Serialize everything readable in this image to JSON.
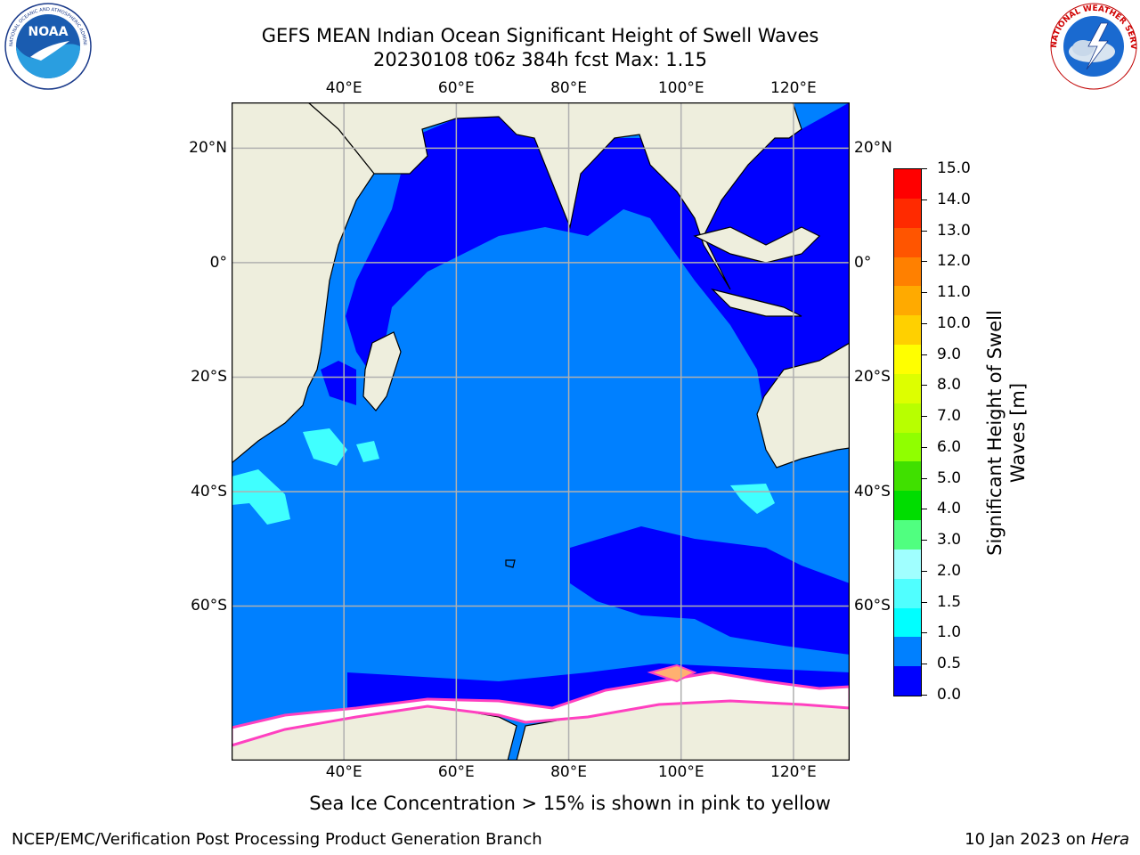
{
  "title": {
    "line1": "GEFS MEAN Indian Ocean Significant Height of Swell Waves",
    "line2": "20230108 t06z 384h fcst   Max: 1.15"
  },
  "logos": {
    "noaa_text": "NOAA",
    "noaa_ring_text": "NATIONAL OCEANIC AND ATMOSPHERIC ADMINISTRATION · U.S. DEPARTMENT OF COMMERCE",
    "nws_ring_text": "NATIONAL WEATHER SERVICE"
  },
  "map": {
    "lon_ticks": [
      "40°E",
      "60°E",
      "80°E",
      "100°E",
      "120°E"
    ],
    "lat_ticks": [
      "20°N",
      "0°",
      "20°S",
      "40°S",
      "60°S"
    ],
    "lon_values": [
      40,
      60,
      80,
      100,
      120
    ],
    "lat_values": [
      20,
      0,
      -20,
      -40,
      -60
    ],
    "lon_range": [
      20,
      130
    ],
    "lat_range": [
      28,
      -87
    ],
    "colors": {
      "land": "#eeeedd",
      "ocean_low": "#0000ff",
      "ocean_mid": "#0080ff",
      "ocean_cyan": "#40ffff",
      "sea_ice": "#ffffff",
      "ice_edge": "#ff40c0",
      "grid": "#b0b0b0"
    }
  },
  "colorbar": {
    "ticks": [
      "15.0",
      "14.0",
      "13.0",
      "12.0",
      "11.0",
      "10.0",
      "9.0",
      "8.0",
      "7.0",
      "6.0",
      "5.0",
      "4.0",
      "3.0",
      "2.0",
      "1.5",
      "1.0",
      "0.5",
      "0.0"
    ],
    "bin_colors": [
      "#ff0000",
      "#ff2a00",
      "#ff5500",
      "#ff8000",
      "#ffaa00",
      "#ffd000",
      "#ffff00",
      "#ddff00",
      "#b8ff00",
      "#90ff00",
      "#40e000",
      "#00dd00",
      "#50ff80",
      "#a0ffff",
      "#50ffff",
      "#00ffff",
      "#0080ff",
      "#0000ff"
    ],
    "label_line1": "Significant Height of Swell",
    "label_line2": "Waves [m]"
  },
  "footer": {
    "note": "Sea Ice Concentration > 15% is shown in pink to yellow",
    "branch": "NCEP/EMC/Verification Post Processing Product Generation Branch",
    "date": "10 Jan 2023 on ",
    "machine": "Hera"
  }
}
